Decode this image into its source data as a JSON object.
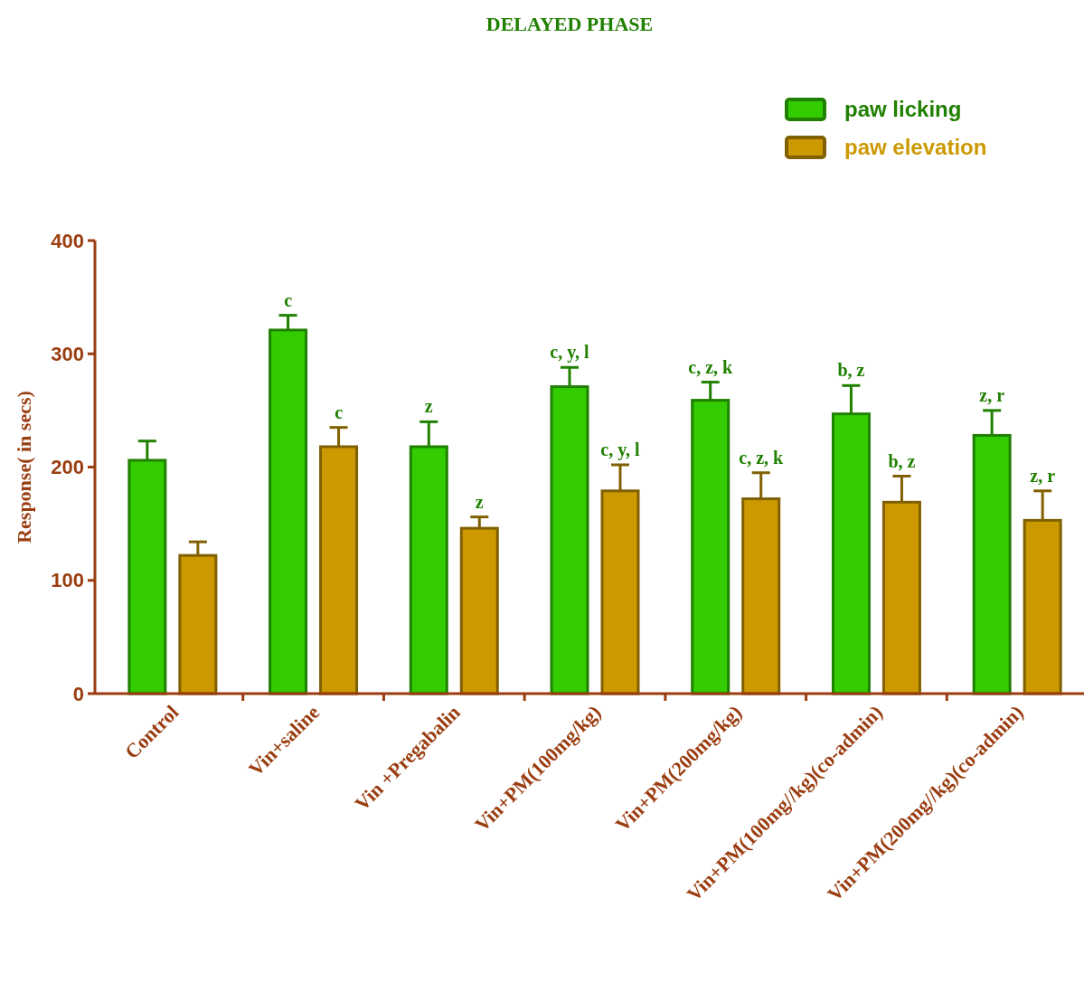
{
  "chart_data": {
    "type": "bar",
    "title": "DELAYED PHASE",
    "ylabel": "Response( in secs)",
    "categories": [
      "Control",
      "Vin+saline",
      "Vin +Pregabalin",
      "Vin+PM(100mg/kg)",
      "Vin+PM(200mg/kg)",
      "Vin+PM(100mg//kg)(co-admin)",
      "Vin+PM(200mg//kg)(co-admin)"
    ],
    "series": [
      {
        "name": "paw licking",
        "color": "#33cc00",
        "values": [
          206,
          321,
          218,
          271,
          259,
          247,
          228
        ],
        "errors": [
          17,
          13,
          22,
          17,
          16,
          25,
          22
        ],
        "value_labels": [
          null,
          "c",
          "z",
          "c, y, l",
          "c, z, k",
          "b, z",
          "z, r"
        ]
      },
      {
        "name": "paw elevation",
        "color": "#cc9900",
        "values": [
          122,
          218,
          146,
          179,
          172,
          169,
          153
        ],
        "errors": [
          12,
          17,
          10,
          23,
          23,
          23,
          26
        ],
        "value_labels": [
          null,
          "c",
          "z",
          "c, y, l",
          "c, z, k",
          "b, z",
          "z, r"
        ]
      }
    ],
    "ylim": [
      0,
      400
    ],
    "yticks": [
      0,
      100,
      200,
      300,
      400
    ],
    "grid": false,
    "legend": "top right"
  }
}
